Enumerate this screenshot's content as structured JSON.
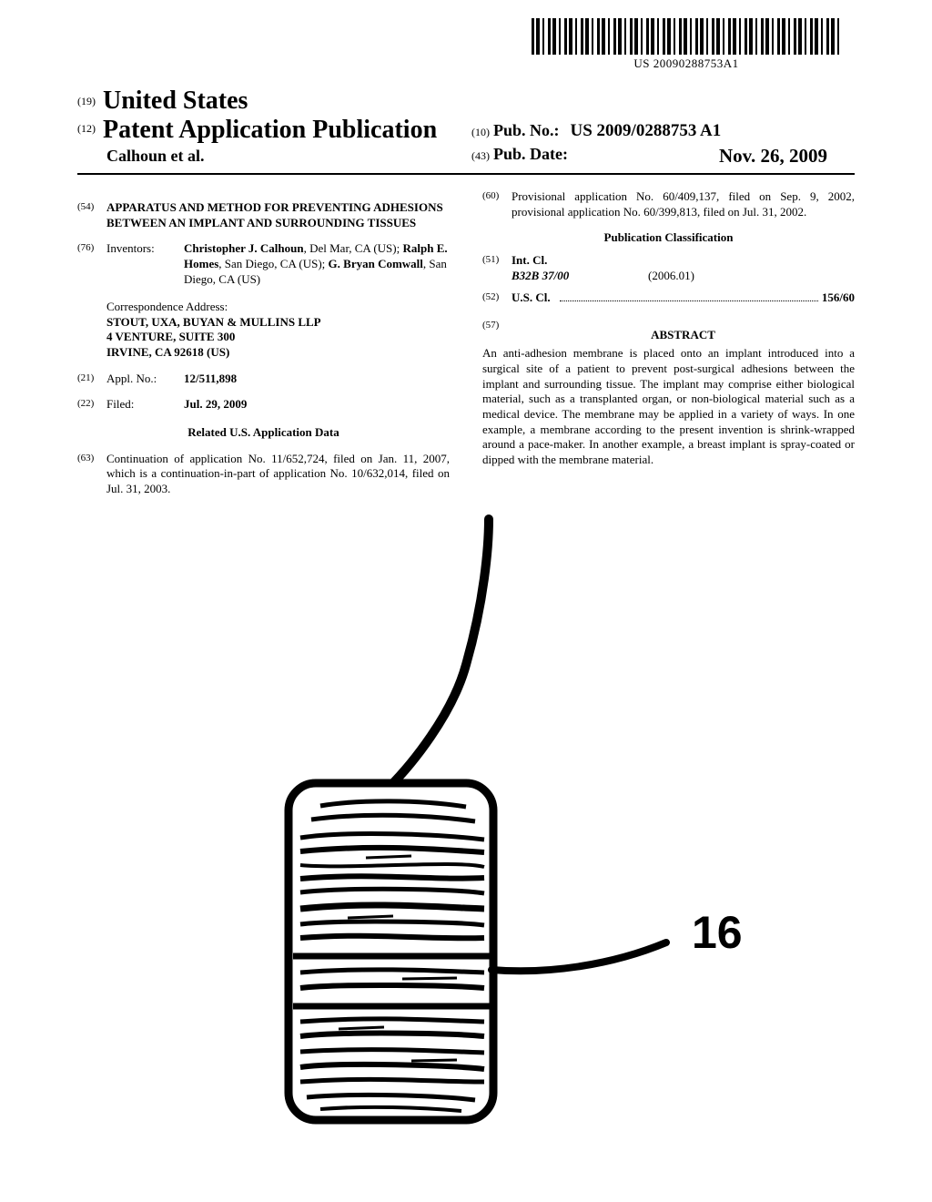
{
  "barcode_number": "US 20090288753A1",
  "header": {
    "country_code": "(19)",
    "country": "United States",
    "pubtype_code": "(12)",
    "pubtype": "Patent Application Publication",
    "authors": "Calhoun et al.",
    "pubno_code": "(10)",
    "pubno_label": "Pub. No.:",
    "pubno_value": "US 2009/0288753 A1",
    "pubdate_code": "(43)",
    "pubdate_label": "Pub. Date:",
    "pubdate_value": "Nov. 26, 2009"
  },
  "left": {
    "title_code": "(54)",
    "title": "APPARATUS AND METHOD FOR PREVENTING ADHESIONS BETWEEN AN IMPLANT AND SURROUNDING TISSUES",
    "inv_code": "(76)",
    "inv_label": "Inventors:",
    "inv_html": "<b>Christopher J. Calhoun</b>, Del Mar, CA (US); <b>Ralph E. Homes</b>, San Diego, CA (US); <b>G. Bryan Comwall</b>, San Diego, CA (US)",
    "corr_label": "Correspondence Address:",
    "corr_line1": "STOUT, UXA, BUYAN & MULLINS LLP",
    "corr_line2": "4 VENTURE, SUITE 300",
    "corr_line3": "IRVINE, CA 92618 (US)",
    "appl_code": "(21)",
    "appl_label": "Appl. No.:",
    "appl_value": "12/511,898",
    "filed_code": "(22)",
    "filed_label": "Filed:",
    "filed_value": "Jul. 29, 2009",
    "related_heading": "Related U.S. Application Data",
    "cont_code": "(63)",
    "cont_text": "Continuation of application No. 11/652,724, filed on Jan. 11, 2007, which is a continuation-in-part of application No. 10/632,014, filed on Jul. 31, 2003."
  },
  "right": {
    "prov_code": "(60)",
    "prov_text": "Provisional application No. 60/409,137, filed on Sep. 9, 2002, provisional application No. 60/399,813, filed on Jul. 31, 2002.",
    "class_heading": "Publication Classification",
    "intcl_code": "(51)",
    "intcl_label": "Int. Cl.",
    "intcl_class": "B32B 37/00",
    "intcl_date": "(2006.01)",
    "uscl_code": "(52)",
    "uscl_label": "U.S. Cl.",
    "uscl_value": "156/60",
    "abstract_code": "(57)",
    "abstract_heading": "ABSTRACT",
    "abstract_text": "An anti-adhesion membrane is placed onto an implant introduced into a surgical site of a patient to prevent post-surgical adhesions between the implant and surrounding tissue. The implant may comprise either biological material, such as a transplanted organ, or non-biological material such as a medical device. The membrane may be applied in a variety of ways. In one example, a membrane according to the present invention is shrink-wrapped around a pace-maker. In another example, a breast implant is spray-coated or dipped with the membrane material."
  },
  "figure": {
    "ref_number": "16"
  }
}
